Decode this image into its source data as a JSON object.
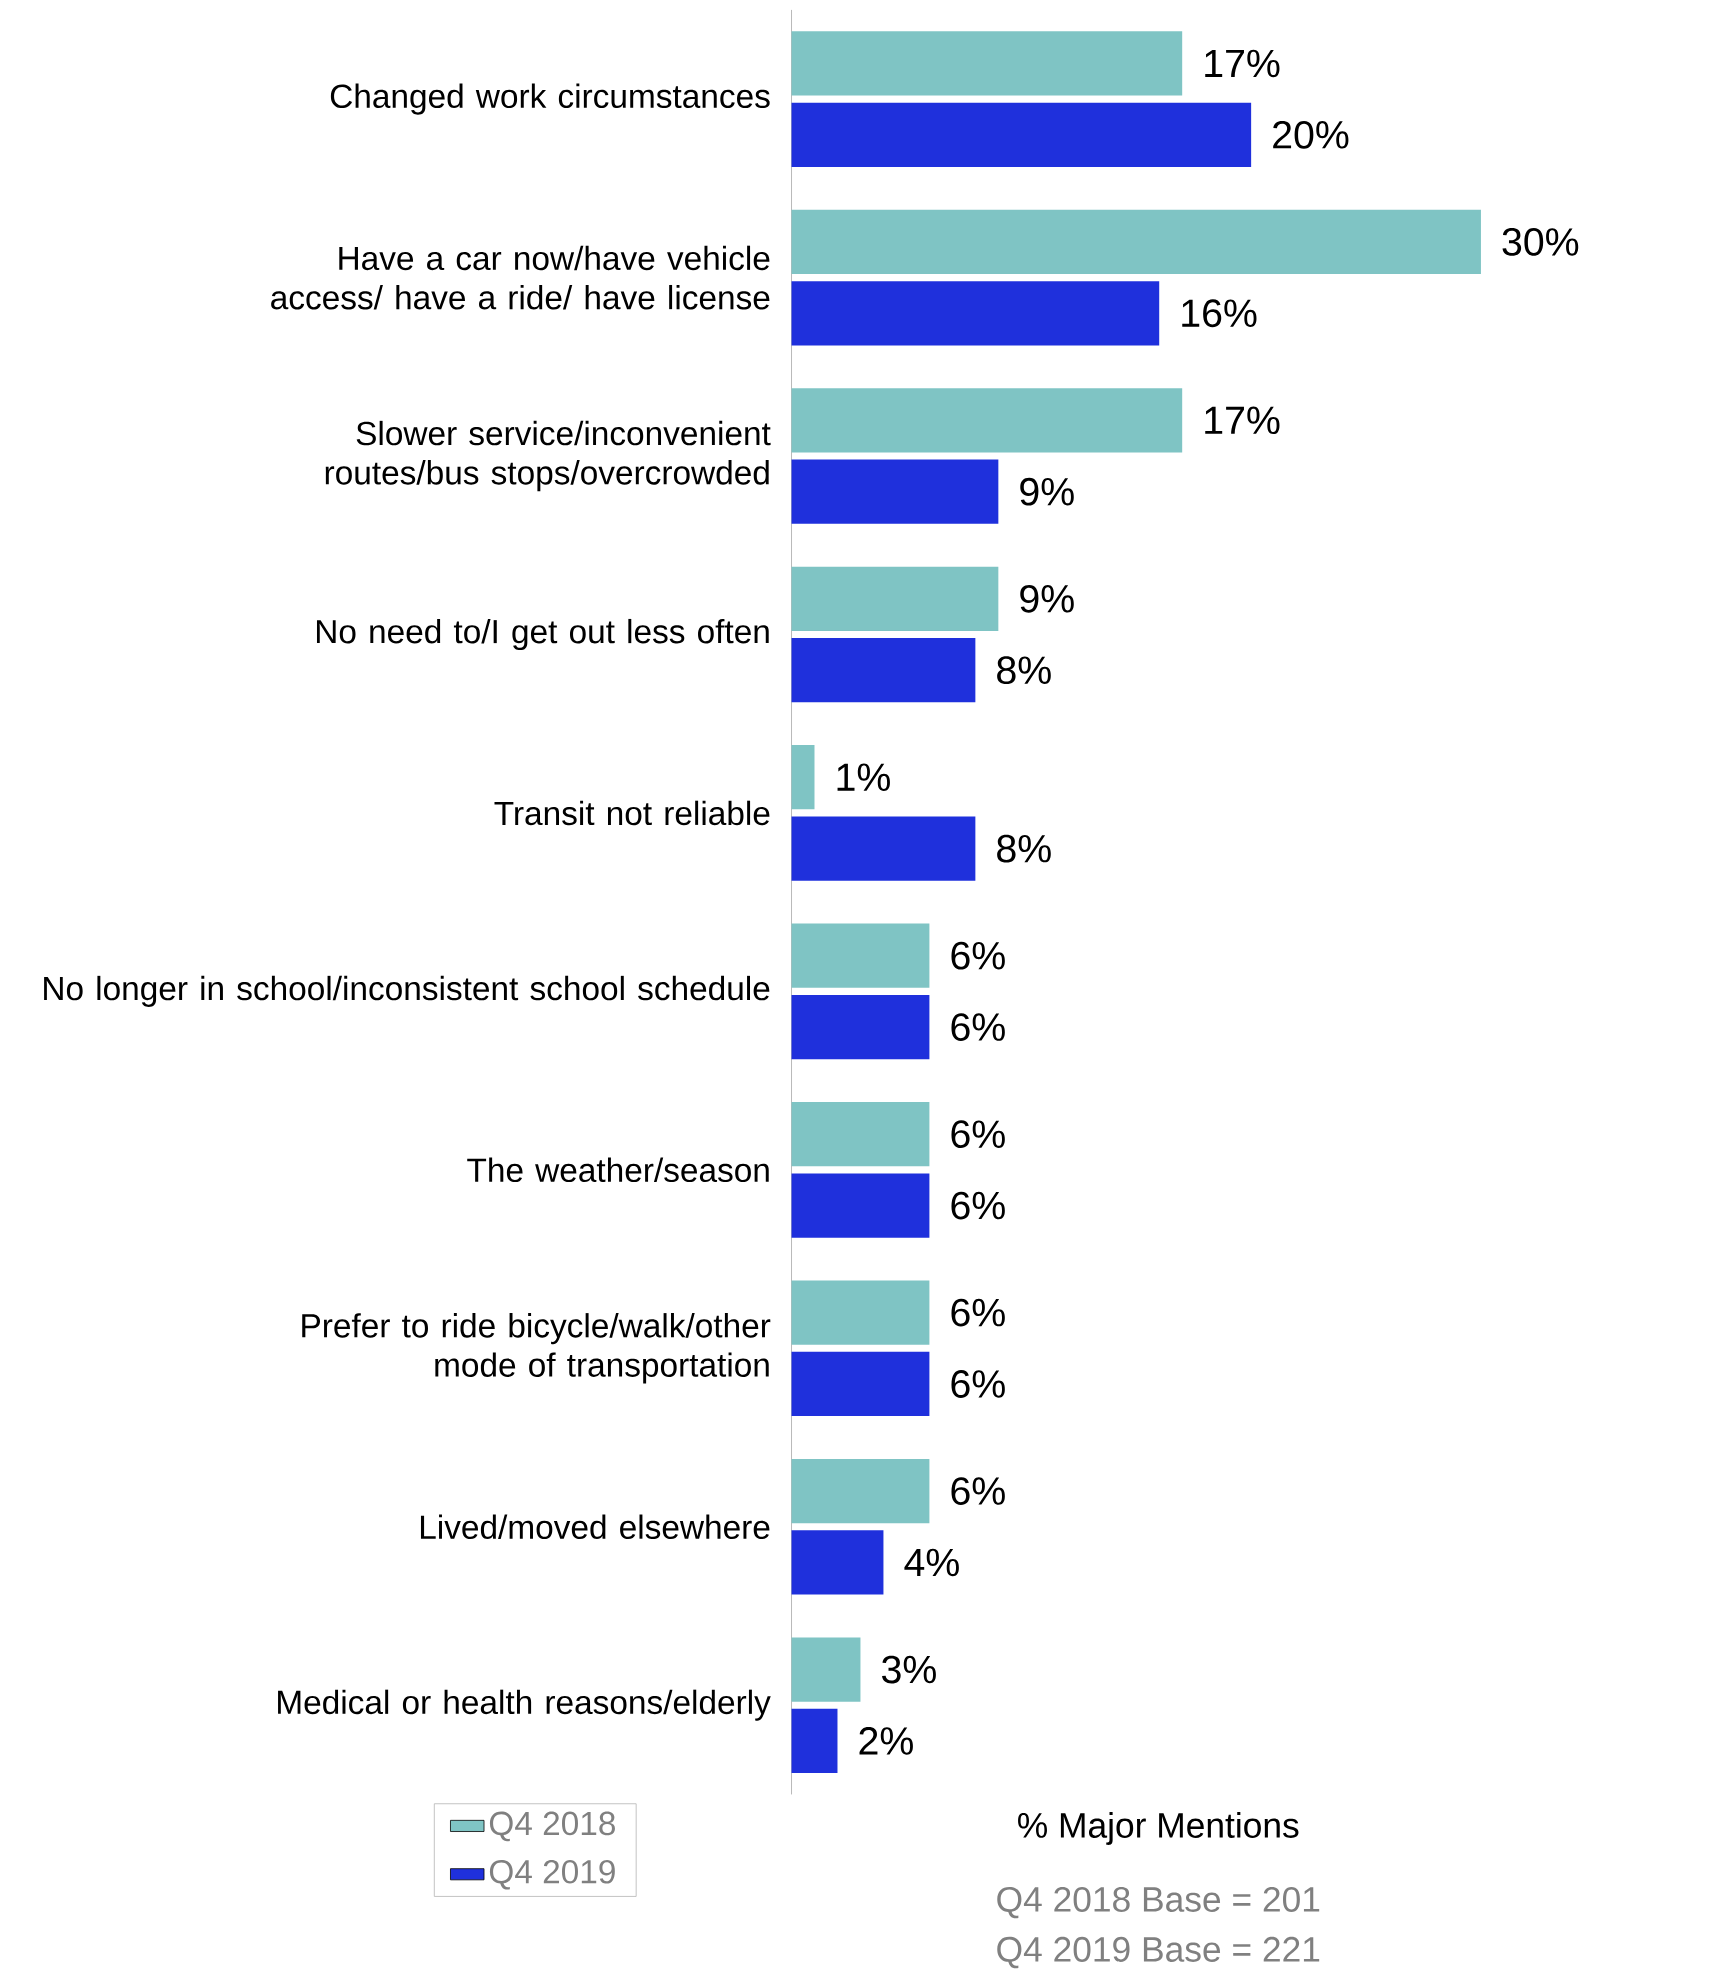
{
  "chart_data": {
    "type": "bar",
    "orientation": "horizontal",
    "xlabel": "% Major Mentions",
    "categories": [
      "Changed work circumstances",
      "Have a car now/have vehicle access/ have a ride/ have license",
      "Slower service/inconvenient routes/bus stops/overcrowded",
      "No need to/I get out less often",
      "Transit not reliable",
      "No longer in school/inconsistent school schedule",
      "The weather/season",
      "Prefer to ride bicycle/walk/other mode of transportation",
      "Lived/moved elsewhere",
      "Medical or health reasons/elderly"
    ],
    "series": [
      {
        "name": "Q4 2018",
        "color": "#7fc4c4",
        "values": [
          17,
          30,
          17,
          9,
          1,
          6,
          6,
          6,
          6,
          3
        ],
        "value_labels": [
          "17%",
          "30%",
          "17%",
          "9%",
          "1%",
          "6%",
          "6%",
          "6%",
          "6%",
          "3%"
        ]
      },
      {
        "name": "Q4 2019",
        "color": "#1f30dc",
        "values": [
          20,
          16,
          9,
          8,
          8,
          6,
          6,
          6,
          4,
          2
        ],
        "value_labels": [
          "20%",
          "16%",
          "9%",
          "8%",
          "8%",
          "6%",
          "6%",
          "6%",
          "4%",
          "2%"
        ]
      }
    ],
    "legend": "bottom left",
    "annotations": [
      "Q4 2018 Base = 201",
      "Q4 2019 Base = 221"
    ]
  }
}
